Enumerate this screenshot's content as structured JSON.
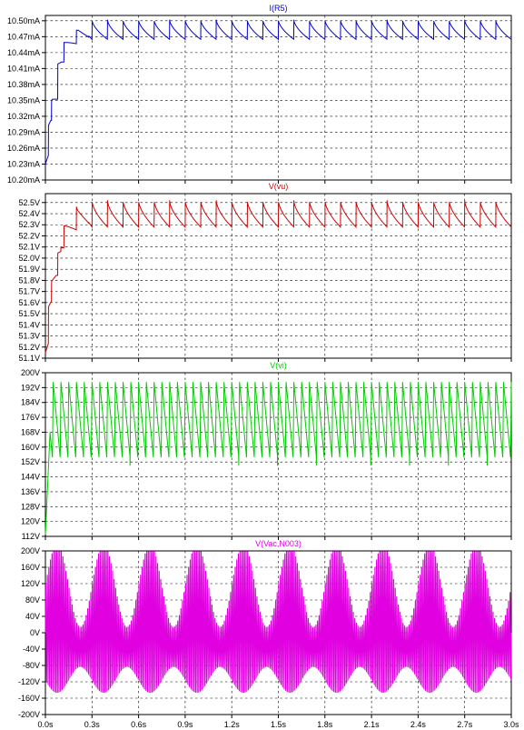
{
  "chart_data": [
    {
      "type": "line",
      "title": "I(R5)",
      "color": "#0000cc",
      "yticks": [
        "10.50mA",
        "10.47mA",
        "10.44mA",
        "10.41mA",
        "10.38mA",
        "10.35mA",
        "10.32mA",
        "10.29mA",
        "10.26mA",
        "10.23mA",
        "10.20mA"
      ],
      "ylim": [
        10.2,
        10.51
      ],
      "ytick_values": [
        10.5,
        10.47,
        10.44,
        10.41,
        10.38,
        10.35,
        10.32,
        10.29,
        10.26,
        10.23,
        10.2
      ],
      "settle": {
        "start": 10.23,
        "steps": [
          [
            0.02,
            10.29
          ],
          [
            0.04,
            10.33
          ],
          [
            0.08,
            10.4
          ],
          [
            0.12,
            10.44
          ],
          [
            0.2,
            10.46
          ],
          [
            0.28,
            10.49
          ]
        ]
      },
      "ripple": {
        "hi": 10.502,
        "lo": 10.465,
        "period": 0.1
      }
    },
    {
      "type": "line",
      "title": "V(vu)",
      "color": "#cc0000",
      "yticks": [
        "52.5V",
        "52.4V",
        "52.3V",
        "52.2V",
        "52.1V",
        "52.0V",
        "51.9V",
        "51.8V",
        "51.7V",
        "51.6V",
        "51.5V",
        "51.4V",
        "51.3V",
        "51.2V",
        "51.1V"
      ],
      "ylim": [
        51.1,
        52.58
      ],
      "ytick_values": [
        52.5,
        52.4,
        52.3,
        52.2,
        52.1,
        52.0,
        51.9,
        51.8,
        51.7,
        51.6,
        51.5,
        51.4,
        51.3,
        51.2,
        51.1
      ],
      "settle": {
        "start": 51.15,
        "steps": [
          [
            0.02,
            51.5
          ],
          [
            0.04,
            51.7
          ],
          [
            0.08,
            51.95
          ],
          [
            0.12,
            52.2
          ],
          [
            0.2,
            52.35
          ],
          [
            0.28,
            52.45
          ]
        ]
      },
      "ripple": {
        "hi": 52.52,
        "lo": 52.28,
        "period": 0.1
      }
    },
    {
      "type": "line",
      "title": "V(vi)",
      "color": "#00cc00",
      "yticks": [
        "200V",
        "192V",
        "184V",
        "176V",
        "168V",
        "160V",
        "152V",
        "144V",
        "136V",
        "128V",
        "120V",
        "112V"
      ],
      "ylim": [
        112,
        200
      ],
      "ytick_values": [
        200,
        192,
        184,
        176,
        168,
        160,
        152,
        144,
        136,
        128,
        120,
        112
      ],
      "sawtooth": {
        "hi": 195,
        "lo": 150,
        "period": 0.05,
        "start": 113
      }
    },
    {
      "type": "line",
      "title": "V(Vac,N003)",
      "color": "#e000e0",
      "yticks": [
        "200V",
        "160V",
        "120V",
        "80V",
        "40V",
        "0V",
        "-40V",
        "-80V",
        "-120V",
        "-160V",
        "-200V"
      ],
      "ylim": [
        -200,
        200
      ],
      "ytick_values": [
        200,
        160,
        120,
        80,
        40,
        0,
        -40,
        -80,
        -120,
        -160,
        -200
      ],
      "ac": {
        "amp_carrier": 120,
        "amp_env": 70,
        "carrier_period": 0.01,
        "env_period": 0.3
      }
    }
  ],
  "x_axis": {
    "ticks": [
      "0.0s",
      "0.3s",
      "0.6s",
      "0.9s",
      "1.2s",
      "1.5s",
      "1.8s",
      "2.1s",
      "2.4s",
      "2.7s",
      "3.0s"
    ],
    "xlim": [
      0,
      3.0
    ],
    "tick_values": [
      0,
      0.3,
      0.6,
      0.9,
      1.2,
      1.5,
      1.8,
      2.1,
      2.4,
      2.7,
      3.0
    ]
  }
}
